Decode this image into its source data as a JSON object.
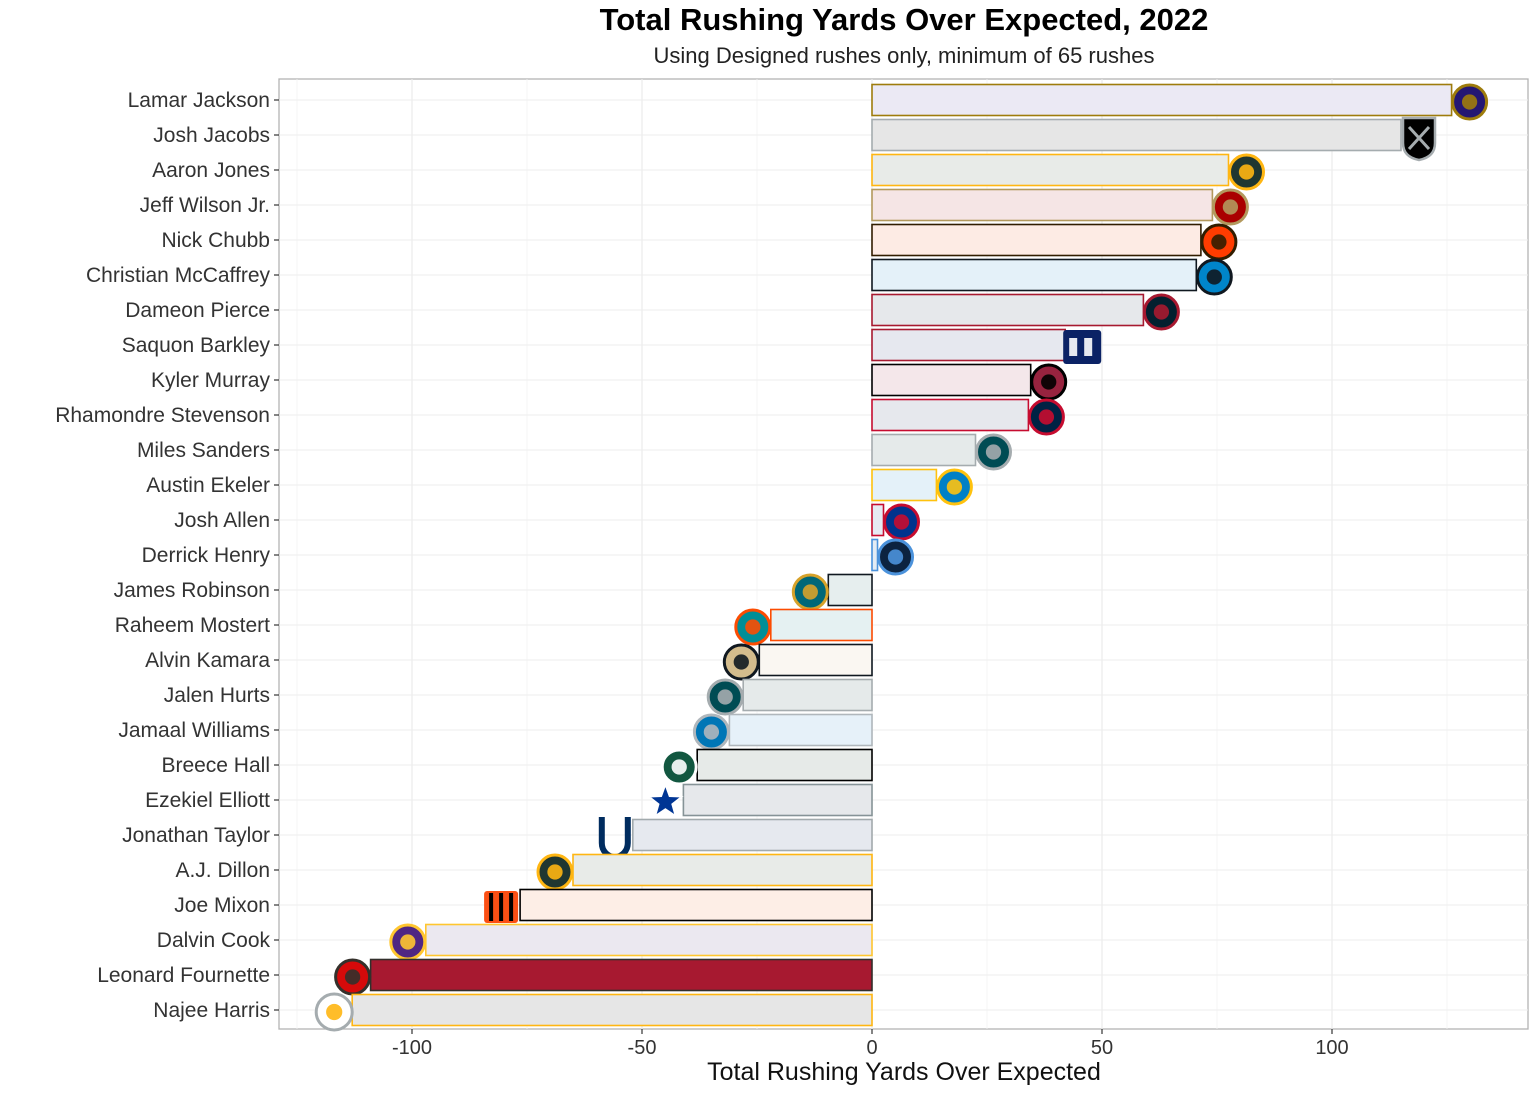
{
  "chart_data": {
    "type": "bar",
    "orientation": "horizontal",
    "title": "Total Rushing Yards Over Expected, 2022",
    "subtitle": "Using Designed rushes only, minimum of 65 rushes",
    "xlabel": "Total Rushing Yards Over Expected",
    "ylabel": "",
    "xlim": [
      -125,
      142
    ],
    "xticks": [
      -100,
      -50,
      0,
      50,
      100
    ],
    "grid": true,
    "series": [
      {
        "player": "Lamar Jackson",
        "team": "BAL",
        "logo": "ravens-icon",
        "value": 126,
        "fill": "#ebe9f4",
        "border": "#9e7c0c"
      },
      {
        "player": "Josh Jacobs",
        "team": "LV",
        "logo": "raiders-icon",
        "value": 115,
        "fill": "#e6e6e6",
        "border": "#a5acaf"
      },
      {
        "player": "Aaron Jones",
        "team": "GB",
        "logo": "packers-icon",
        "value": 77.5,
        "fill": "#e8ebe8",
        "border": "#ffb612"
      },
      {
        "player": "Jeff Wilson Jr.",
        "team": "SF",
        "logo": "49ers-icon",
        "value": 74,
        "fill": "#f5e5e5",
        "border": "#b3995d"
      },
      {
        "player": "Nick Chubb",
        "team": "CLE",
        "logo": "browns-icon",
        "value": 71.5,
        "fill": "#fdebe4",
        "border": "#311d00"
      },
      {
        "player": "Christian McCaffrey",
        "team": "SF",
        "logo": "panthers-icon",
        "value": 70.5,
        "fill": "#e4f1f9",
        "border": "#101820"
      },
      {
        "player": "Dameon Pierce",
        "team": "HOU",
        "logo": "texans-icon",
        "value": 59,
        "fill": "#e6e8eb",
        "border": "#a71930"
      },
      {
        "player": "Saquon Barkley",
        "team": "NYG",
        "logo": "giants-icon",
        "value": 42,
        "fill": "#e6e8ef",
        "border": "#a71930"
      },
      {
        "player": "Kyler Murray",
        "team": "ARI",
        "logo": "cardinals-icon",
        "value": 34.5,
        "fill": "#f4e7ea",
        "border": "#000000"
      },
      {
        "player": "Rhamondre Stevenson",
        "team": "NE",
        "logo": "patriots-icon",
        "value": 34,
        "fill": "#e6e8ed",
        "border": "#c60c30"
      },
      {
        "player": "Miles Sanders",
        "team": "PHI",
        "logo": "eagles-icon",
        "value": 22.5,
        "fill": "#e5eaea",
        "border": "#a5acaf"
      },
      {
        "player": "Austin Ekeler",
        "team": "LAC",
        "logo": "chargers-icon",
        "value": 14,
        "fill": "#e4f1f9",
        "border": "#ffc20e"
      },
      {
        "player": "Josh Allen",
        "team": "BUF",
        "logo": "bills-icon",
        "value": 2.5,
        "fill": "#e6eaf3",
        "border": "#c60c30"
      },
      {
        "player": "Derrick Henry",
        "team": "TEN",
        "logo": "titans-icon",
        "value": 1.2,
        "fill": "#e4ecf4",
        "border": "#4b92db"
      },
      {
        "player": "James Robinson",
        "team": "JAX",
        "logo": "jaguars-icon",
        "value": -9.5,
        "fill": "#e6eeee",
        "border": "#101820"
      },
      {
        "player": "Raheem Mostert",
        "team": "MIA",
        "logo": "dolphins-icon",
        "value": -22,
        "fill": "#e5f1f2",
        "border": "#fc4c02"
      },
      {
        "player": "Alvin Kamara",
        "team": "NO",
        "logo": "saints-icon",
        "value": -24.5,
        "fill": "#faf7f2",
        "border": "#101820"
      },
      {
        "player": "Jalen Hurts",
        "team": "PHI",
        "logo": "eagles-icon",
        "value": -28,
        "fill": "#e5eaea",
        "border": "#a5acaf"
      },
      {
        "player": "Jamaal Williams",
        "team": "DET",
        "logo": "lions-icon",
        "value": -31,
        "fill": "#e6f1f9",
        "border": "#b0b7bc"
      },
      {
        "player": "Breece Hall",
        "team": "NYJ",
        "logo": "jets-icon",
        "value": -38,
        "fill": "#e6eae8",
        "border": "#000000"
      },
      {
        "player": "Ezekiel Elliott",
        "team": "DAL",
        "logo": "cowboys-icon",
        "value": -41,
        "fill": "#e6e8eb",
        "border": "#869397"
      },
      {
        "player": "Jonathan Taylor",
        "team": "IND",
        "logo": "colts-icon",
        "value": -52,
        "fill": "#e6e9ef",
        "border": "#a2aaad"
      },
      {
        "player": "A.J. Dillon",
        "team": "GB",
        "logo": "packers-icon",
        "value": -65,
        "fill": "#e8ebe8",
        "border": "#ffb612"
      },
      {
        "player": "Joe Mixon",
        "team": "CIN",
        "logo": "bengals-icon",
        "value": -76.5,
        "fill": "#fdeee6",
        "border": "#000000"
      },
      {
        "player": "Dalvin Cook",
        "team": "MIN",
        "logo": "vikings-icon",
        "value": -97,
        "fill": "#ebe8f0",
        "border": "#ffc62f"
      },
      {
        "player": "Leonard Fournette",
        "team": "TB",
        "logo": "buccaneers-icon",
        "value": -109,
        "fill": "#a71930",
        "border": "#322f2b"
      },
      {
        "player": "Najee Harris",
        "team": "PIT",
        "logo": "steelers-icon",
        "value": -113,
        "fill": "#e6e6e6",
        "border": "#ffb612"
      }
    ]
  }
}
